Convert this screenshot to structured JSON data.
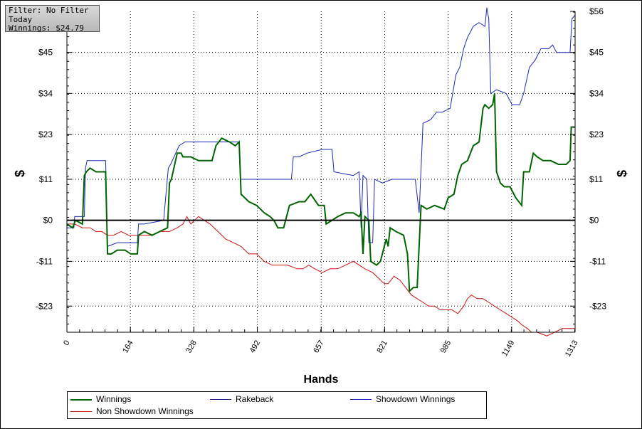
{
  "filter_box": {
    "filter_line": "Filter: No Filter",
    "period_line": "Today",
    "winnings_line": "Winnings: $24.79"
  },
  "chart_data": {
    "type": "line",
    "xlabel": "Hands",
    "ylabel": "$",
    "xlim": [
      0,
      1313
    ],
    "ylim": [
      -30,
      56
    ],
    "x_ticks": [
      0,
      164,
      328,
      492,
      657,
      821,
      985,
      1149,
      1313
    ],
    "y_ticks": [
      -23,
      -11,
      0,
      11,
      23,
      34,
      45,
      56
    ],
    "y_tick_labels": [
      "-$23",
      "-$11",
      "$0",
      "$11",
      "$23",
      "$34",
      "$45",
      "$56"
    ],
    "grid": true,
    "legend_placement": "bottom",
    "series": [
      {
        "name": "Winnings",
        "color": "#006400",
        "points": [
          [
            0,
            -1
          ],
          [
            15,
            -2
          ],
          [
            22,
            0
          ],
          [
            40,
            -1
          ],
          [
            45,
            12
          ],
          [
            50,
            13
          ],
          [
            60,
            14
          ],
          [
            75,
            13
          ],
          [
            100,
            13
          ],
          [
            105,
            -9
          ],
          [
            115,
            -9
          ],
          [
            130,
            -8
          ],
          [
            150,
            -8
          ],
          [
            165,
            -9
          ],
          [
            182,
            -9
          ],
          [
            185,
            -4
          ],
          [
            200,
            -3
          ],
          [
            220,
            -4
          ],
          [
            240,
            -3
          ],
          [
            260,
            -2
          ],
          [
            265,
            10
          ],
          [
            270,
            11
          ],
          [
            285,
            18
          ],
          [
            295,
            18
          ],
          [
            300,
            17
          ],
          [
            320,
            17
          ],
          [
            340,
            16
          ],
          [
            375,
            16
          ],
          [
            385,
            20
          ],
          [
            400,
            22
          ],
          [
            420,
            21
          ],
          [
            435,
            20
          ],
          [
            445,
            21
          ],
          [
            450,
            7
          ],
          [
            470,
            5
          ],
          [
            490,
            4
          ],
          [
            510,
            2
          ],
          [
            525,
            1
          ],
          [
            535,
            0
          ],
          [
            545,
            -2
          ],
          [
            560,
            -2
          ],
          [
            575,
            4
          ],
          [
            600,
            5
          ],
          [
            615,
            5
          ],
          [
            630,
            7
          ],
          [
            650,
            4
          ],
          [
            665,
            4
          ],
          [
            670,
            -1
          ],
          [
            700,
            1
          ],
          [
            720,
            2
          ],
          [
            740,
            2
          ],
          [
            755,
            1
          ],
          [
            760,
            2
          ],
          [
            765,
            -9
          ],
          [
            770,
            1
          ],
          [
            780,
            0
          ],
          [
            785,
            -11
          ],
          [
            800,
            -12
          ],
          [
            810,
            -11
          ],
          [
            825,
            -5
          ],
          [
            830,
            -7
          ],
          [
            835,
            -2
          ],
          [
            850,
            -3
          ],
          [
            870,
            -4
          ],
          [
            880,
            -9
          ],
          [
            885,
            -19
          ],
          [
            895,
            -18
          ],
          [
            905,
            -18
          ],
          [
            915,
            4
          ],
          [
            930,
            3
          ],
          [
            950,
            4
          ],
          [
            975,
            3
          ],
          [
            985,
            6
          ],
          [
            1000,
            7
          ],
          [
            1010,
            12
          ],
          [
            1020,
            15
          ],
          [
            1035,
            16
          ],
          [
            1050,
            20
          ],
          [
            1065,
            21
          ],
          [
            1075,
            30
          ],
          [
            1080,
            31
          ],
          [
            1090,
            30
          ],
          [
            1100,
            31
          ],
          [
            1105,
            34
          ],
          [
            1110,
            13
          ],
          [
            1120,
            10
          ],
          [
            1130,
            9
          ],
          [
            1145,
            9
          ],
          [
            1160,
            6
          ],
          [
            1175,
            4
          ],
          [
            1180,
            13
          ],
          [
            1195,
            13
          ],
          [
            1205,
            18
          ],
          [
            1215,
            17
          ],
          [
            1230,
            16
          ],
          [
            1250,
            16
          ],
          [
            1270,
            15
          ],
          [
            1290,
            15
          ],
          [
            1300,
            16
          ],
          [
            1303,
            25
          ],
          [
            1313,
            25
          ]
        ]
      },
      {
        "name": "Rakeback",
        "color": "#1a1a8a",
        "points": [
          [
            0,
            0
          ],
          [
            1313,
            0
          ]
        ]
      },
      {
        "name": "Showdown Winnings",
        "color": "#1c28b8",
        "points": [
          [
            0,
            -2
          ],
          [
            18,
            -2
          ],
          [
            20,
            1
          ],
          [
            45,
            1
          ],
          [
            48,
            14
          ],
          [
            52,
            16
          ],
          [
            100,
            16
          ],
          [
            105,
            -7
          ],
          [
            130,
            -6
          ],
          [
            145,
            -6
          ],
          [
            182,
            -6
          ],
          [
            185,
            -1
          ],
          [
            200,
            -1
          ],
          [
            250,
            0
          ],
          [
            262,
            14
          ],
          [
            268,
            15
          ],
          [
            290,
            20
          ],
          [
            305,
            21
          ],
          [
            330,
            21
          ],
          [
            350,
            21
          ],
          [
            430,
            21
          ],
          [
            445,
            21
          ],
          [
            448,
            11
          ],
          [
            475,
            11
          ],
          [
            520,
            11
          ],
          [
            580,
            11
          ],
          [
            585,
            17
          ],
          [
            600,
            17
          ],
          [
            620,
            18
          ],
          [
            660,
            19
          ],
          [
            685,
            19
          ],
          [
            690,
            13
          ],
          [
            740,
            12
          ],
          [
            755,
            13
          ],
          [
            760,
            -2
          ],
          [
            765,
            12
          ],
          [
            775,
            11
          ],
          [
            780,
            -6
          ],
          [
            790,
            -6
          ],
          [
            795,
            11
          ],
          [
            815,
            10
          ],
          [
            840,
            11
          ],
          [
            900,
            11
          ],
          [
            910,
            2
          ],
          [
            920,
            26
          ],
          [
            940,
            27
          ],
          [
            955,
            29
          ],
          [
            970,
            29
          ],
          [
            990,
            30
          ],
          [
            1005,
            39
          ],
          [
            1015,
            41
          ],
          [
            1025,
            46
          ],
          [
            1035,
            49
          ],
          [
            1050,
            52
          ],
          [
            1065,
            53
          ],
          [
            1080,
            52
          ],
          [
            1085,
            57
          ],
          [
            1090,
            54
          ],
          [
            1095,
            34
          ],
          [
            1110,
            35
          ],
          [
            1135,
            34
          ],
          [
            1150,
            31
          ],
          [
            1170,
            31
          ],
          [
            1180,
            34
          ],
          [
            1195,
            41
          ],
          [
            1210,
            43
          ],
          [
            1225,
            46
          ],
          [
            1245,
            46
          ],
          [
            1255,
            47
          ],
          [
            1265,
            45
          ],
          [
            1285,
            45
          ],
          [
            1300,
            45
          ],
          [
            1305,
            54
          ],
          [
            1313,
            55
          ]
        ]
      },
      {
        "name": "Non Showdown Winnings",
        "color": "#cc1111",
        "points": [
          [
            0,
            -1
          ],
          [
            20,
            -1
          ],
          [
            40,
            -2
          ],
          [
            60,
            -2
          ],
          [
            75,
            -3
          ],
          [
            90,
            -3
          ],
          [
            105,
            -4
          ],
          [
            120,
            -4
          ],
          [
            140,
            -3
          ],
          [
            160,
            -4
          ],
          [
            180,
            -4
          ],
          [
            200,
            -4
          ],
          [
            220,
            -4
          ],
          [
            240,
            -3
          ],
          [
            265,
            -3
          ],
          [
            285,
            -2
          ],
          [
            300,
            -1
          ],
          [
            310,
            1
          ],
          [
            320,
            -1
          ],
          [
            340,
            1
          ],
          [
            355,
            0
          ],
          [
            370,
            -1
          ],
          [
            390,
            -3
          ],
          [
            410,
            -5
          ],
          [
            430,
            -6
          ],
          [
            450,
            -7
          ],
          [
            470,
            -9
          ],
          [
            490,
            -9
          ],
          [
            510,
            -11
          ],
          [
            530,
            -12
          ],
          [
            550,
            -12
          ],
          [
            570,
            -12
          ],
          [
            595,
            -13
          ],
          [
            610,
            -13
          ],
          [
            625,
            -12
          ],
          [
            640,
            -13
          ],
          [
            660,
            -14
          ],
          [
            680,
            -13
          ],
          [
            700,
            -13
          ],
          [
            720,
            -12
          ],
          [
            740,
            -11
          ],
          [
            755,
            -12
          ],
          [
            770,
            -13
          ],
          [
            790,
            -14
          ],
          [
            810,
            -16
          ],
          [
            820,
            -17
          ],
          [
            830,
            -17
          ],
          [
            845,
            -15
          ],
          [
            860,
            -16
          ],
          [
            875,
            -18
          ],
          [
            890,
            -20
          ],
          [
            905,
            -21
          ],
          [
            920,
            -22
          ],
          [
            935,
            -23
          ],
          [
            950,
            -23
          ],
          [
            965,
            -24
          ],
          [
            980,
            -24
          ],
          [
            995,
            -24
          ],
          [
            1010,
            -25
          ],
          [
            1025,
            -23
          ],
          [
            1035,
            -21
          ],
          [
            1045,
            -20
          ],
          [
            1060,
            -21
          ],
          [
            1075,
            -21
          ],
          [
            1090,
            -22
          ],
          [
            1105,
            -23
          ],
          [
            1120,
            -24
          ],
          [
            1135,
            -25
          ],
          [
            1150,
            -26
          ],
          [
            1165,
            -27
          ],
          [
            1175,
            -28
          ],
          [
            1190,
            -29
          ],
          [
            1200,
            -30
          ],
          [
            1215,
            -30
          ],
          [
            1240,
            -31
          ],
          [
            1260,
            -30
          ],
          [
            1280,
            -29
          ],
          [
            1300,
            -29
          ],
          [
            1313,
            -29
          ]
        ]
      }
    ]
  },
  "legend": {
    "items": [
      "Winnings",
      "Rakeback",
      "Showdown Winnings",
      "Non Showdown Winnings"
    ]
  }
}
